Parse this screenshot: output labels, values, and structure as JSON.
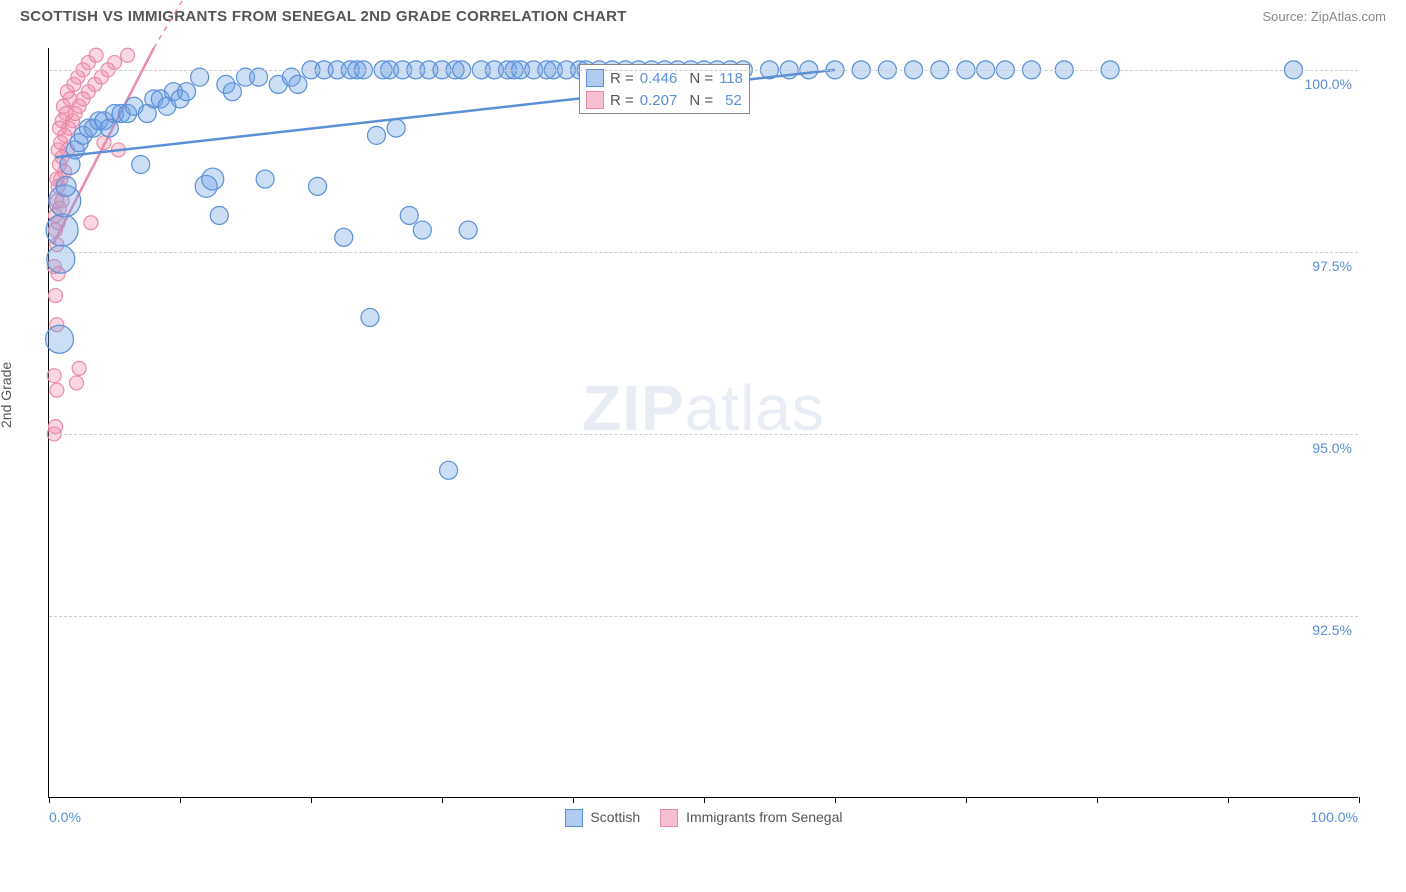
{
  "header": {
    "title": "SCOTTISH VS IMMIGRANTS FROM SENEGAL 2ND GRADE CORRELATION CHART",
    "source": "Source: ZipAtlas.com"
  },
  "axes": {
    "ylabel": "2nd Grade",
    "xmin": 0.0,
    "xmax": 100.0,
    "ymin": 90.0,
    "ymax": 100.3,
    "xticklabel_left": "0.0%",
    "xticklabel_right": "100.0%",
    "xticks_pct": [
      0,
      10,
      20,
      30,
      40,
      50,
      60,
      70,
      80,
      90,
      100
    ],
    "yticks": [
      {
        "v": 92.5,
        "label": "92.5%"
      },
      {
        "v": 95.0,
        "label": "95.0%"
      },
      {
        "v": 97.5,
        "label": "97.5%"
      },
      {
        "v": 100.0,
        "label": "100.0%"
      }
    ],
    "grid_color": "#cccccc"
  },
  "series": {
    "scottish": {
      "label": "Scottish",
      "fill": "rgba(110,160,230,0.35)",
      "stroke": "#5b8fd6",
      "r_label": "R =",
      "r_value": "0.446",
      "n_label": "N =",
      "n_value": "118",
      "trend": {
        "x1": 0.5,
        "y1": 98.8,
        "x2": 60.0,
        "y2": 100.0
      },
      "points": [
        {
          "x": 0.8,
          "y": 96.3,
          "r": 14
        },
        {
          "x": 0.9,
          "y": 97.4,
          "r": 14
        },
        {
          "x": 1.0,
          "y": 97.8,
          "r": 16
        },
        {
          "x": 1.2,
          "y": 98.2,
          "r": 16
        },
        {
          "x": 1.3,
          "y": 98.4,
          "r": 10
        },
        {
          "x": 1.6,
          "y": 98.7,
          "r": 10
        },
        {
          "x": 2.0,
          "y": 98.9,
          "r": 9
        },
        {
          "x": 2.3,
          "y": 99.0,
          "r": 9
        },
        {
          "x": 2.6,
          "y": 99.1,
          "r": 9
        },
        {
          "x": 3.0,
          "y": 99.2,
          "r": 9
        },
        {
          "x": 3.4,
          "y": 99.2,
          "r": 9
        },
        {
          "x": 3.8,
          "y": 99.3,
          "r": 9
        },
        {
          "x": 4.2,
          "y": 99.3,
          "r": 9
        },
        {
          "x": 4.6,
          "y": 99.2,
          "r": 9
        },
        {
          "x": 5.0,
          "y": 99.4,
          "r": 9
        },
        {
          "x": 5.5,
          "y": 99.4,
          "r": 9
        },
        {
          "x": 6.0,
          "y": 99.4,
          "r": 9
        },
        {
          "x": 6.5,
          "y": 99.5,
          "r": 9
        },
        {
          "x": 7.0,
          "y": 98.7,
          "r": 9
        },
        {
          "x": 7.5,
          "y": 99.4,
          "r": 9
        },
        {
          "x": 8.0,
          "y": 99.6,
          "r": 9
        },
        {
          "x": 8.5,
          "y": 99.6,
          "r": 9
        },
        {
          "x": 9.0,
          "y": 99.5,
          "r": 9
        },
        {
          "x": 9.5,
          "y": 99.7,
          "r": 9
        },
        {
          "x": 10.0,
          "y": 99.6,
          "r": 9
        },
        {
          "x": 10.5,
          "y": 99.7,
          "r": 9
        },
        {
          "x": 11.5,
          "y": 99.9,
          "r": 9
        },
        {
          "x": 12.0,
          "y": 98.4,
          "r": 11
        },
        {
          "x": 12.5,
          "y": 98.5,
          "r": 11
        },
        {
          "x": 13.0,
          "y": 98.0,
          "r": 9
        },
        {
          "x": 13.5,
          "y": 99.8,
          "r": 9
        },
        {
          "x": 14.0,
          "y": 99.7,
          "r": 9
        },
        {
          "x": 15.0,
          "y": 99.9,
          "r": 9
        },
        {
          "x": 16.0,
          "y": 99.9,
          "r": 9
        },
        {
          "x": 16.5,
          "y": 98.5,
          "r": 9
        },
        {
          "x": 17.5,
          "y": 99.8,
          "r": 9
        },
        {
          "x": 18.5,
          "y": 99.9,
          "r": 9
        },
        {
          "x": 19.0,
          "y": 99.8,
          "r": 9
        },
        {
          "x": 20.0,
          "y": 100.0,
          "r": 9
        },
        {
          "x": 20.5,
          "y": 98.4,
          "r": 9
        },
        {
          "x": 21.0,
          "y": 100.0,
          "r": 9
        },
        {
          "x": 22.5,
          "y": 97.7,
          "r": 9
        },
        {
          "x": 22.0,
          "y": 100.0,
          "r": 9
        },
        {
          "x": 23.0,
          "y": 100.0,
          "r": 9
        },
        {
          "x": 23.5,
          "y": 100.0,
          "r": 9
        },
        {
          "x": 24.5,
          "y": 96.6,
          "r": 9
        },
        {
          "x": 24.0,
          "y": 100.0,
          "r": 9
        },
        {
          "x": 25.0,
          "y": 99.1,
          "r": 9
        },
        {
          "x": 25.5,
          "y": 100.0,
          "r": 9
        },
        {
          "x": 26.0,
          "y": 100.0,
          "r": 9
        },
        {
          "x": 26.5,
          "y": 99.2,
          "r": 9
        },
        {
          "x": 27.0,
          "y": 100.0,
          "r": 9
        },
        {
          "x": 27.5,
          "y": 98.0,
          "r": 9
        },
        {
          "x": 28.0,
          "y": 100.0,
          "r": 9
        },
        {
          "x": 28.5,
          "y": 97.8,
          "r": 9
        },
        {
          "x": 29.0,
          "y": 100.0,
          "r": 9
        },
        {
          "x": 30.0,
          "y": 100.0,
          "r": 9
        },
        {
          "x": 30.5,
          "y": 94.5,
          "r": 9
        },
        {
          "x": 31.0,
          "y": 100.0,
          "r": 9
        },
        {
          "x": 31.5,
          "y": 100.0,
          "r": 9
        },
        {
          "x": 32.0,
          "y": 97.8,
          "r": 9
        },
        {
          "x": 33.0,
          "y": 100.0,
          "r": 9
        },
        {
          "x": 34.0,
          "y": 100.0,
          "r": 9
        },
        {
          "x": 35.0,
          "y": 100.0,
          "r": 9
        },
        {
          "x": 35.5,
          "y": 100.0,
          "r": 9
        },
        {
          "x": 36.0,
          "y": 100.0,
          "r": 9
        },
        {
          "x": 37.0,
          "y": 100.0,
          "r": 9
        },
        {
          "x": 38.0,
          "y": 100.0,
          "r": 9
        },
        {
          "x": 38.5,
          "y": 100.0,
          "r": 9
        },
        {
          "x": 39.5,
          "y": 100.0,
          "r": 9
        },
        {
          "x": 40.5,
          "y": 100.0,
          "r": 9
        },
        {
          "x": 41.0,
          "y": 100.0,
          "r": 9
        },
        {
          "x": 42.0,
          "y": 100.0,
          "r": 9
        },
        {
          "x": 43.0,
          "y": 100.0,
          "r": 9
        },
        {
          "x": 44.0,
          "y": 100.0,
          "r": 9
        },
        {
          "x": 45.0,
          "y": 100.0,
          "r": 9
        },
        {
          "x": 46.0,
          "y": 100.0,
          "r": 9
        },
        {
          "x": 47.0,
          "y": 100.0,
          "r": 9
        },
        {
          "x": 48.0,
          "y": 100.0,
          "r": 9
        },
        {
          "x": 49.0,
          "y": 100.0,
          "r": 9
        },
        {
          "x": 50.0,
          "y": 100.0,
          "r": 9
        },
        {
          "x": 51.0,
          "y": 100.0,
          "r": 9
        },
        {
          "x": 52.0,
          "y": 100.0,
          "r": 9
        },
        {
          "x": 53.0,
          "y": 100.0,
          "r": 9
        },
        {
          "x": 55.0,
          "y": 100.0,
          "r": 9
        },
        {
          "x": 56.5,
          "y": 100.0,
          "r": 9
        },
        {
          "x": 58.0,
          "y": 100.0,
          "r": 9
        },
        {
          "x": 60.0,
          "y": 100.0,
          "r": 9
        },
        {
          "x": 62.0,
          "y": 100.0,
          "r": 9
        },
        {
          "x": 64.0,
          "y": 100.0,
          "r": 9
        },
        {
          "x": 66.0,
          "y": 100.0,
          "r": 9
        },
        {
          "x": 68.0,
          "y": 100.0,
          "r": 9
        },
        {
          "x": 70.0,
          "y": 100.0,
          "r": 9
        },
        {
          "x": 71.5,
          "y": 100.0,
          "r": 9
        },
        {
          "x": 73.0,
          "y": 100.0,
          "r": 9
        },
        {
          "x": 75.0,
          "y": 100.0,
          "r": 9
        },
        {
          "x": 77.5,
          "y": 100.0,
          "r": 9
        },
        {
          "x": 81.0,
          "y": 100.0,
          "r": 9
        },
        {
          "x": 95.0,
          "y": 100.0,
          "r": 9
        }
      ]
    },
    "senegal": {
      "label": "Immigrants from Senegal",
      "fill": "rgba(240,140,170,0.35)",
      "stroke": "#e98bab",
      "r_label": "R =",
      "r_value": "0.207",
      "n_label": "N =",
      "n_value": "52",
      "trend": {
        "x1": 0.3,
        "y1": 97.6,
        "x2": 8.0,
        "y2": 100.3
      },
      "points": [
        {
          "x": 0.4,
          "y": 95.0,
          "r": 7
        },
        {
          "x": 0.5,
          "y": 95.1,
          "r": 7
        },
        {
          "x": 0.6,
          "y": 95.6,
          "r": 7
        },
        {
          "x": 0.4,
          "y": 95.8,
          "r": 7
        },
        {
          "x": 2.1,
          "y": 95.7,
          "r": 7
        },
        {
          "x": 2.3,
          "y": 95.9,
          "r": 7
        },
        {
          "x": 0.6,
          "y": 96.5,
          "r": 7
        },
        {
          "x": 0.5,
          "y": 96.9,
          "r": 7
        },
        {
          "x": 0.7,
          "y": 97.2,
          "r": 7
        },
        {
          "x": 0.4,
          "y": 97.3,
          "r": 7
        },
        {
          "x": 0.6,
          "y": 97.6,
          "r": 7
        },
        {
          "x": 0.5,
          "y": 97.8,
          "r": 7
        },
        {
          "x": 0.7,
          "y": 97.9,
          "r": 7
        },
        {
          "x": 0.5,
          "y": 98.0,
          "r": 7
        },
        {
          "x": 0.8,
          "y": 98.1,
          "r": 7
        },
        {
          "x": 0.6,
          "y": 98.2,
          "r": 7
        },
        {
          "x": 1.0,
          "y": 98.2,
          "r": 7
        },
        {
          "x": 0.7,
          "y": 98.4,
          "r": 7
        },
        {
          "x": 0.9,
          "y": 98.5,
          "r": 7
        },
        {
          "x": 0.6,
          "y": 98.5,
          "r": 7
        },
        {
          "x": 1.2,
          "y": 98.6,
          "r": 7
        },
        {
          "x": 0.8,
          "y": 98.7,
          "r": 7
        },
        {
          "x": 1.0,
          "y": 98.8,
          "r": 7
        },
        {
          "x": 0.7,
          "y": 98.9,
          "r": 7
        },
        {
          "x": 1.4,
          "y": 98.9,
          "r": 7
        },
        {
          "x": 0.9,
          "y": 99.0,
          "r": 7
        },
        {
          "x": 1.2,
          "y": 99.1,
          "r": 7
        },
        {
          "x": 0.8,
          "y": 99.2,
          "r": 7
        },
        {
          "x": 1.5,
          "y": 99.2,
          "r": 7
        },
        {
          "x": 1.0,
          "y": 99.3,
          "r": 7
        },
        {
          "x": 1.8,
          "y": 99.3,
          "r": 7
        },
        {
          "x": 1.3,
          "y": 99.4,
          "r": 7
        },
        {
          "x": 2.0,
          "y": 99.4,
          "r": 7
        },
        {
          "x": 1.1,
          "y": 99.5,
          "r": 7
        },
        {
          "x": 2.3,
          "y": 99.5,
          "r": 7
        },
        {
          "x": 1.6,
          "y": 99.6,
          "r": 7
        },
        {
          "x": 2.6,
          "y": 99.6,
          "r": 7
        },
        {
          "x": 1.4,
          "y": 99.7,
          "r": 7
        },
        {
          "x": 3.0,
          "y": 99.7,
          "r": 7
        },
        {
          "x": 1.9,
          "y": 99.8,
          "r": 7
        },
        {
          "x": 3.5,
          "y": 99.8,
          "r": 7
        },
        {
          "x": 2.2,
          "y": 99.9,
          "r": 7
        },
        {
          "x": 4.0,
          "y": 99.9,
          "r": 7
        },
        {
          "x": 2.6,
          "y": 100.0,
          "r": 7
        },
        {
          "x": 4.5,
          "y": 100.0,
          "r": 7
        },
        {
          "x": 3.0,
          "y": 100.1,
          "r": 7
        },
        {
          "x": 5.0,
          "y": 100.1,
          "r": 7
        },
        {
          "x": 3.6,
          "y": 100.2,
          "r": 7
        },
        {
          "x": 6.0,
          "y": 100.2,
          "r": 7
        },
        {
          "x": 4.2,
          "y": 99.0,
          "r": 7
        },
        {
          "x": 3.2,
          "y": 97.9,
          "r": 7
        },
        {
          "x": 5.3,
          "y": 98.9,
          "r": 7
        }
      ]
    }
  },
  "legend": {
    "scottish_label": "Scottish",
    "senegal_label": "Immigrants from Senegal"
  },
  "watermark": {
    "zip": "ZIP",
    "atlas": "atlas"
  },
  "colors": {
    "scottish_fill": "rgba(110,160,230,0.55)",
    "scottish_border": "#5b8fd6",
    "senegal_fill": "rgba(240,140,170,0.55)",
    "senegal_border": "#e98bab"
  }
}
